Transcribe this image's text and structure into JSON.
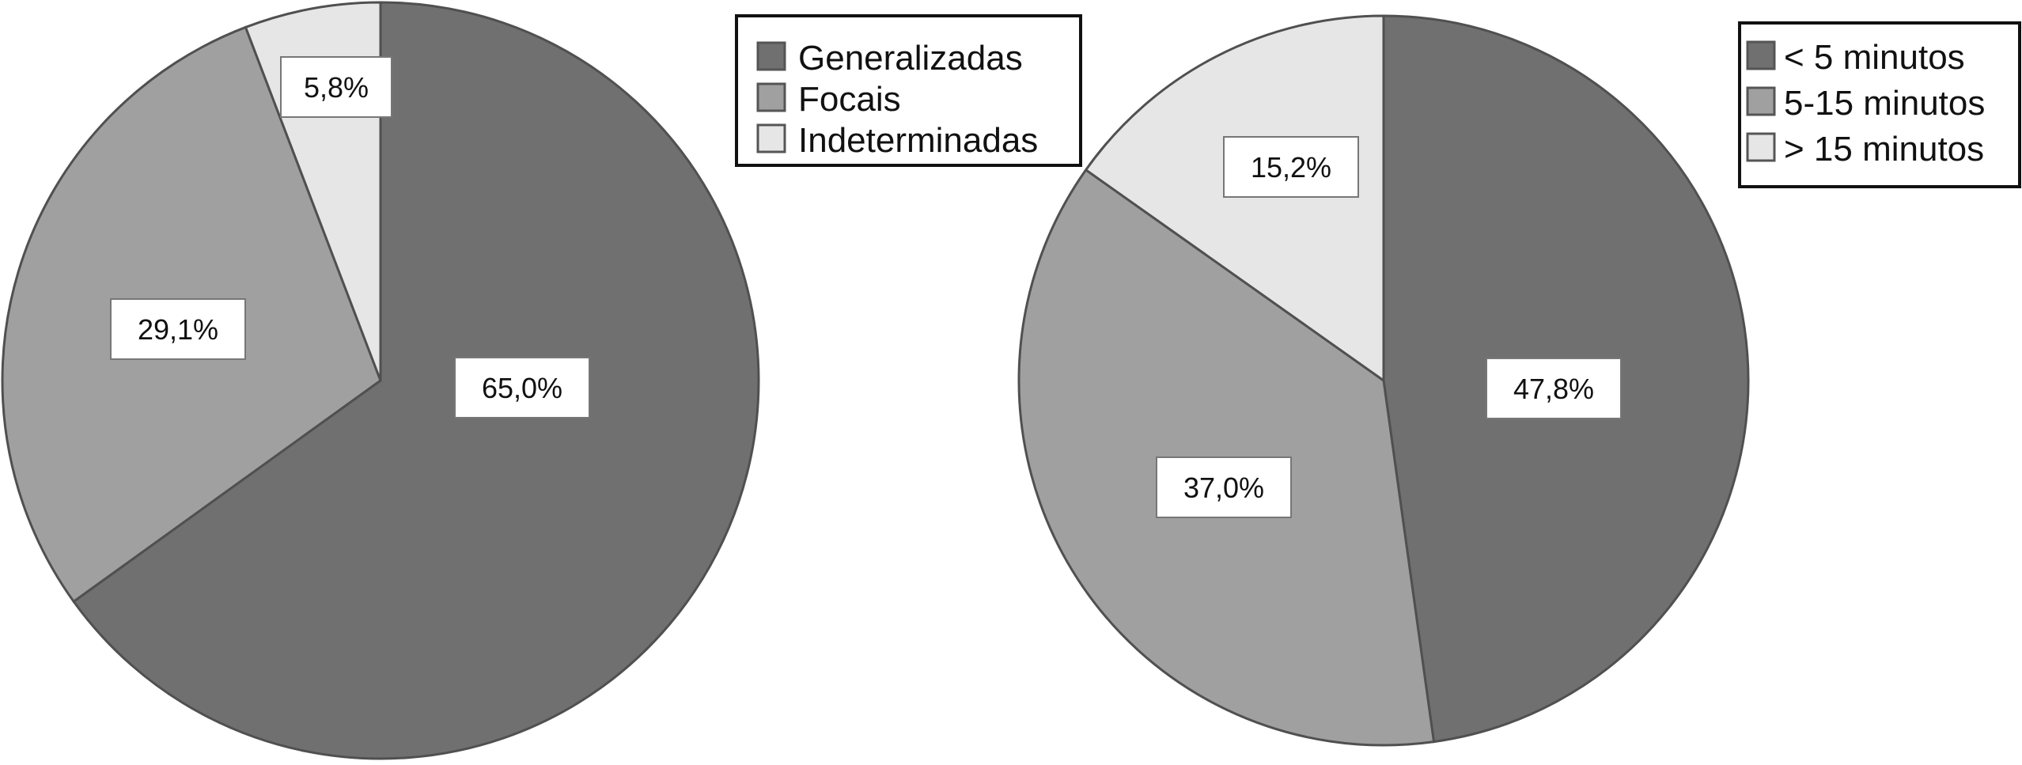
{
  "colors": {
    "dark": "#707070",
    "medium": "#a0a0a0",
    "light": "#e6e6e6",
    "stroke": "#505050"
  },
  "chart_data": [
    {
      "type": "pie",
      "categories": [
        "Generalizadas",
        "Focais",
        "Indeterminadas"
      ],
      "values": [
        65.0,
        29.1,
        5.8
      ],
      "labels": [
        "65,0%",
        "29,1%",
        "5,8%"
      ],
      "legend": [
        "Generalizadas",
        "Focais",
        "Indeterminadas"
      ],
      "legend_position": "top-right",
      "start": "top",
      "direction": "clockwise"
    },
    {
      "type": "pie",
      "categories": [
        "< 5 minutos",
        "5-15 minutos",
        "> 15 minutos"
      ],
      "values": [
        47.8,
        37.0,
        15.2
      ],
      "labels": [
        "47,8%",
        "37,0%",
        "15,2%"
      ],
      "legend": [
        "< 5 minutos",
        "5-15 minutos",
        "> 15 minutos"
      ],
      "legend_position": "top-right",
      "start": "top",
      "direction": "clockwise"
    }
  ]
}
